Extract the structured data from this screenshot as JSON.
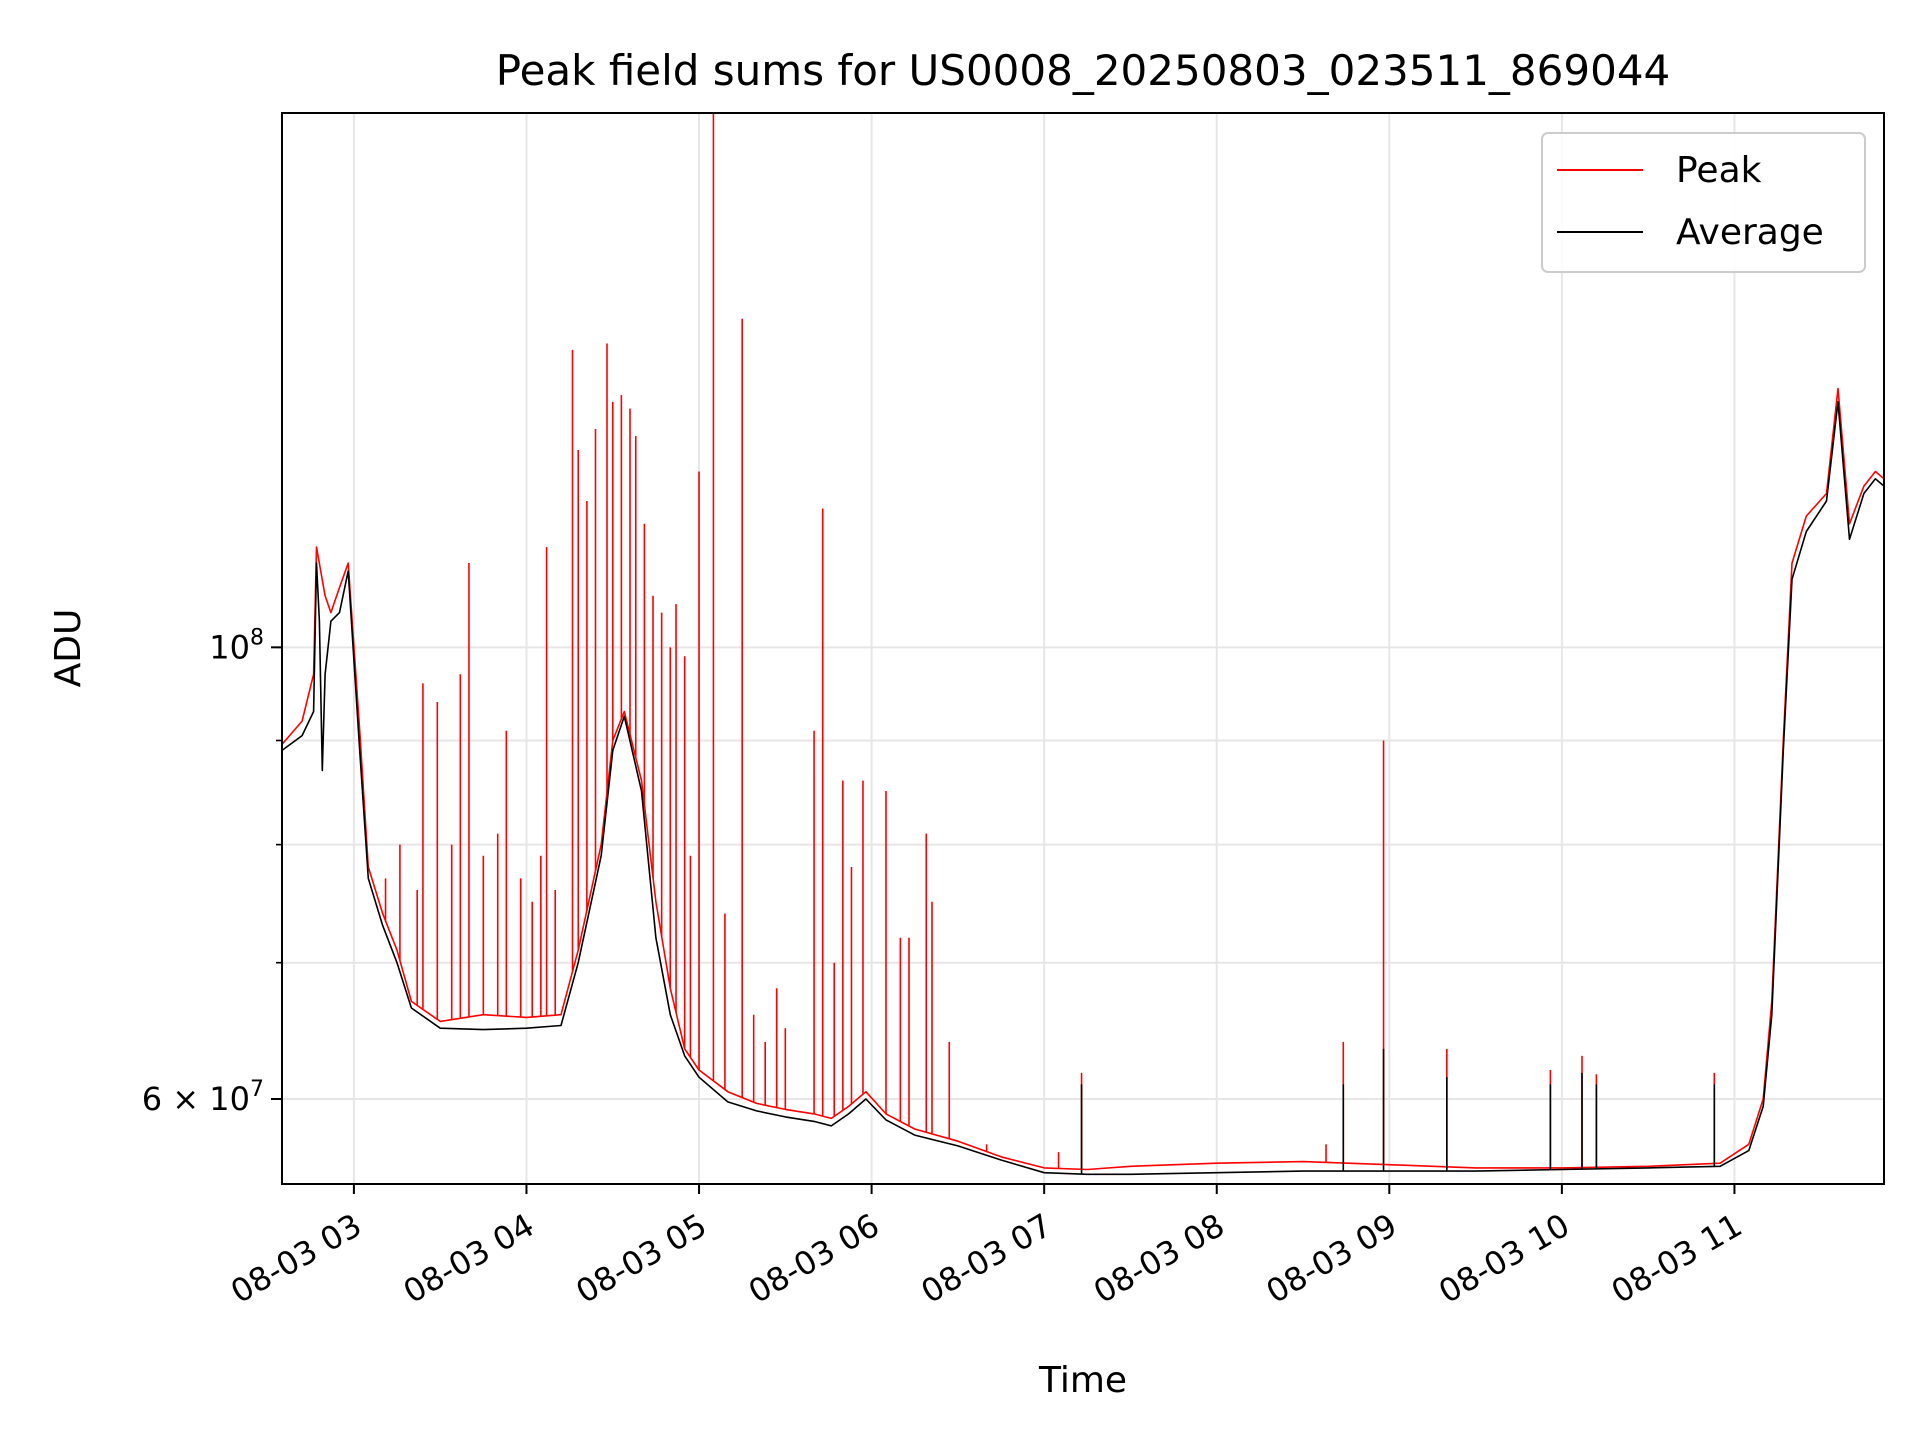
{
  "chart_data": {
    "type": "line",
    "title": "Peak field sums for US0008_20250803_023511_869044",
    "xlabel": "Time",
    "ylabel": "ADU",
    "y_scale": "log",
    "ylim": [
      54500000,
      183000000
    ],
    "xlim": [
      "2025-08-03 02:35",
      "2025-08-03 11:52"
    ],
    "grid": true,
    "legend_position": "top-right",
    "x_ticks": [
      {
        "time": "2025-08-03 03:00",
        "label": "08-03 03"
      },
      {
        "time": "2025-08-03 04:00",
        "label": "08-03 04"
      },
      {
        "time": "2025-08-03 05:00",
        "label": "08-03 05"
      },
      {
        "time": "2025-08-03 06:00",
        "label": "08-03 06"
      },
      {
        "time": "2025-08-03 07:00",
        "label": "08-03 07"
      },
      {
        "time": "2025-08-03 08:00",
        "label": "08-03 08"
      },
      {
        "time": "2025-08-03 09:00",
        "label": "08-03 09"
      },
      {
        "time": "2025-08-03 10:00",
        "label": "08-03 10"
      },
      {
        "time": "2025-08-03 11:00",
        "label": "08-03 11"
      }
    ],
    "y_major_ticks": [
      {
        "value": 60000000,
        "mantissa": "6",
        "exponent": "7"
      },
      {
        "value": 100000000,
        "mantissa": "",
        "exponent": "8"
      }
    ],
    "y_minor_ticks": [
      60000000,
      70000000,
      80000000,
      90000000,
      100000000
    ],
    "series": [
      {
        "name": "Peak",
        "color": "#ff0000",
        "points": [
          [
            "2025-08-03 02:35",
            89600000
          ],
          [
            "2025-08-03 02:42",
            92000000
          ],
          [
            "2025-08-03 02:46",
            97000000
          ],
          [
            "2025-08-03 02:47",
            112000000
          ],
          [
            "2025-08-03 02:50",
            106000000
          ],
          [
            "2025-08-03 02:52",
            104000000
          ],
          [
            "2025-08-03 02:55",
            107000000
          ],
          [
            "2025-08-03 02:58",
            110000000
          ],
          [
            "2025-08-03 03:02",
            91000000
          ],
          [
            "2025-08-03 03:05",
            78000000
          ],
          [
            "2025-08-03 03:10",
            74000000
          ],
          [
            "2025-08-03 03:15",
            71000000
          ],
          [
            "2025-08-03 03:20",
            67000000
          ],
          [
            "2025-08-03 03:30",
            65500000
          ],
          [
            "2025-08-03 03:45",
            66000000
          ],
          [
            "2025-08-03 04:00",
            65800000
          ],
          [
            "2025-08-03 04:12",
            66000000
          ],
          [
            "2025-08-03 04:18",
            71000000
          ],
          [
            "2025-08-03 04:26",
            80000000
          ],
          [
            "2025-08-03 04:30",
            90000000
          ],
          [
            "2025-08-03 04:34",
            93000000
          ],
          [
            "2025-08-03 04:40",
            86000000
          ],
          [
            "2025-08-03 04:45",
            75000000
          ],
          [
            "2025-08-03 04:50",
            68000000
          ],
          [
            "2025-08-03 04:55",
            63500000
          ],
          [
            "2025-08-03 05:00",
            62000000
          ],
          [
            "2025-08-03 05:10",
            60500000
          ],
          [
            "2025-08-03 05:20",
            59700000
          ],
          [
            "2025-08-03 05:30",
            59300000
          ],
          [
            "2025-08-03 05:40",
            59000000
          ],
          [
            "2025-08-03 05:46",
            58700000
          ],
          [
            "2025-08-03 05:52",
            59500000
          ],
          [
            "2025-08-03 05:58",
            60500000
          ],
          [
            "2025-08-03 06:05",
            59000000
          ],
          [
            "2025-08-03 06:15",
            58000000
          ],
          [
            "2025-08-03 06:30",
            57200000
          ],
          [
            "2025-08-03 06:45",
            56200000
          ],
          [
            "2025-08-03 07:00",
            55500000
          ],
          [
            "2025-08-03 07:15",
            55400000
          ],
          [
            "2025-08-03 07:30",
            55600000
          ],
          [
            "2025-08-03 08:00",
            55800000
          ],
          [
            "2025-08-03 08:30",
            55900000
          ],
          [
            "2025-08-03 09:00",
            55700000
          ],
          [
            "2025-08-03 09:30",
            55500000
          ],
          [
            "2025-08-03 10:00",
            55500000
          ],
          [
            "2025-08-03 10:30",
            55600000
          ],
          [
            "2025-08-03 10:55",
            55800000
          ],
          [
            "2025-08-03 11:05",
            57000000
          ],
          [
            "2025-08-03 11:10",
            60000000
          ],
          [
            "2025-08-03 11:13",
            67000000
          ],
          [
            "2025-08-03 11:17",
            90000000
          ],
          [
            "2025-08-03 11:20",
            110000000
          ],
          [
            "2025-08-03 11:25",
            116000000
          ],
          [
            "2025-08-03 11:32",
            119000000
          ],
          [
            "2025-08-03 11:36",
            134000000
          ],
          [
            "2025-08-03 11:40",
            115000000
          ],
          [
            "2025-08-03 11:45",
            120000000
          ],
          [
            "2025-08-03 11:49",
            122000000
          ],
          [
            "2025-08-03 11:52",
            121000000
          ]
        ],
        "spikes": [
          [
            "2025-08-03 03:11",
            77000000
          ],
          [
            "2025-08-03 03:16",
            80000000
          ],
          [
            "2025-08-03 03:22",
            76000000
          ],
          [
            "2025-08-03 03:24",
            96000000
          ],
          [
            "2025-08-03 03:29",
            94000000
          ],
          [
            "2025-08-03 03:34",
            80000000
          ],
          [
            "2025-08-03 03:37",
            97000000
          ],
          [
            "2025-08-03 03:40",
            110000000
          ],
          [
            "2025-08-03 03:45",
            79000000
          ],
          [
            "2025-08-03 03:50",
            81000000
          ],
          [
            "2025-08-03 03:53",
            91000000
          ],
          [
            "2025-08-03 03:58",
            77000000
          ],
          [
            "2025-08-03 04:02",
            75000000
          ],
          [
            "2025-08-03 04:05",
            79000000
          ],
          [
            "2025-08-03 04:07",
            112000000
          ],
          [
            "2025-08-03 04:10",
            76000000
          ],
          [
            "2025-08-03 04:16",
            140000000
          ],
          [
            "2025-08-03 04:18",
            125000000
          ],
          [
            "2025-08-03 04:21",
            118000000
          ],
          [
            "2025-08-03 04:24",
            128000000
          ],
          [
            "2025-08-03 04:28",
            141000000
          ],
          [
            "2025-08-03 04:30",
            132000000
          ],
          [
            "2025-08-03 04:33",
            133000000
          ],
          [
            "2025-08-03 04:36",
            131000000
          ],
          [
            "2025-08-03 04:38",
            127000000
          ],
          [
            "2025-08-03 04:41",
            115000000
          ],
          [
            "2025-08-03 04:44",
            106000000
          ],
          [
            "2025-08-03 04:47",
            104000000
          ],
          [
            "2025-08-03 04:50",
            100000000
          ],
          [
            "2025-08-03 04:52",
            105000000
          ],
          [
            "2025-08-03 04:55",
            99000000
          ],
          [
            "2025-08-03 04:57",
            79000000
          ],
          [
            "2025-08-03 05:00",
            122000000
          ],
          [
            "2025-08-03 05:05",
            183000000
          ],
          [
            "2025-08-03 05:09",
            74000000
          ],
          [
            "2025-08-03 05:15",
            145000000
          ],
          [
            "2025-08-03 05:19",
            66000000
          ],
          [
            "2025-08-03 05:23",
            64000000
          ],
          [
            "2025-08-03 05:27",
            68000000
          ],
          [
            "2025-08-03 05:30",
            65000000
          ],
          [
            "2025-08-03 05:40",
            91000000
          ],
          [
            "2025-08-03 05:43",
            117000000
          ],
          [
            "2025-08-03 05:47",
            70000000
          ],
          [
            "2025-08-03 05:50",
            86000000
          ],
          [
            "2025-08-03 05:53",
            78000000
          ],
          [
            "2025-08-03 05:57",
            86000000
          ],
          [
            "2025-08-03 06:05",
            85000000
          ],
          [
            "2025-08-03 06:10",
            72000000
          ],
          [
            "2025-08-03 06:13",
            72000000
          ],
          [
            "2025-08-03 06:19",
            81000000
          ],
          [
            "2025-08-03 06:21",
            75000000
          ],
          [
            "2025-08-03 06:27",
            64000000
          ],
          [
            "2025-08-03 06:40",
            57000000
          ],
          [
            "2025-08-03 07:05",
            56500000
          ],
          [
            "2025-08-03 07:13",
            61800000
          ],
          [
            "2025-08-03 08:38",
            57000000
          ],
          [
            "2025-08-03 08:44",
            64000000
          ],
          [
            "2025-08-03 08:58",
            90000000
          ],
          [
            "2025-08-03 09:20",
            63500000
          ],
          [
            "2025-08-03 09:56",
            62000000
          ],
          [
            "2025-08-03 10:07",
            63000000
          ],
          [
            "2025-08-03 10:12",
            61700000
          ],
          [
            "2025-08-03 10:53",
            61800000
          ]
        ]
      },
      {
        "name": "Average",
        "color": "#000000",
        "points": [
          [
            "2025-08-03 02:35",
            89000000
          ],
          [
            "2025-08-03 02:42",
            90500000
          ],
          [
            "2025-08-03 02:46",
            93000000
          ],
          [
            "2025-08-03 02:47",
            110000000
          ],
          [
            "2025-08-03 02:48",
            103000000
          ],
          [
            "2025-08-03 02:49",
            87000000
          ],
          [
            "2025-08-03 02:50",
            97000000
          ],
          [
            "2025-08-03 02:52",
            103000000
          ],
          [
            "2025-08-03 02:55",
            104000000
          ],
          [
            "2025-08-03 02:58",
            109000000
          ],
          [
            "2025-08-03 03:02",
            89000000
          ],
          [
            "2025-08-03 03:05",
            77000000
          ],
          [
            "2025-08-03 03:10",
            73000000
          ],
          [
            "2025-08-03 03:15",
            70000000
          ],
          [
            "2025-08-03 03:20",
            66500000
          ],
          [
            "2025-08-03 03:30",
            65000000
          ],
          [
            "2025-08-03 03:45",
            64900000
          ],
          [
            "2025-08-03 04:00",
            65000000
          ],
          [
            "2025-08-03 04:12",
            65200000
          ],
          [
            "2025-08-03 04:18",
            70000000
          ],
          [
            "2025-08-03 04:26",
            79000000
          ],
          [
            "2025-08-03 04:30",
            89000000
          ],
          [
            "2025-08-03 04:34",
            92500000
          ],
          [
            "2025-08-03 04:40",
            85000000
          ],
          [
            "2025-08-03 04:45",
            72000000
          ],
          [
            "2025-08-03 04:50",
            66000000
          ],
          [
            "2025-08-03 04:55",
            63000000
          ],
          [
            "2025-08-03 05:00",
            61500000
          ],
          [
            "2025-08-03 05:10",
            59800000
          ],
          [
            "2025-08-03 05:20",
            59200000
          ],
          [
            "2025-08-03 05:30",
            58800000
          ],
          [
            "2025-08-03 05:40",
            58500000
          ],
          [
            "2025-08-03 05:46",
            58200000
          ],
          [
            "2025-08-03 05:52",
            59000000
          ],
          [
            "2025-08-03 05:58",
            60000000
          ],
          [
            "2025-08-03 06:05",
            58600000
          ],
          [
            "2025-08-03 06:15",
            57600000
          ],
          [
            "2025-08-03 06:30",
            56900000
          ],
          [
            "2025-08-03 06:45",
            56000000
          ],
          [
            "2025-08-03 07:00",
            55200000
          ],
          [
            "2025-08-03 07:15",
            55100000
          ],
          [
            "2025-08-03 07:30",
            55100000
          ],
          [
            "2025-08-03 08:00",
            55200000
          ],
          [
            "2025-08-03 08:30",
            55300000
          ],
          [
            "2025-08-03 09:00",
            55300000
          ],
          [
            "2025-08-03 09:30",
            55300000
          ],
          [
            "2025-08-03 10:00",
            55400000
          ],
          [
            "2025-08-03 10:30",
            55500000
          ],
          [
            "2025-08-03 10:55",
            55600000
          ],
          [
            "2025-08-03 11:05",
            56600000
          ],
          [
            "2025-08-03 11:10",
            59500000
          ],
          [
            "2025-08-03 11:13",
            66000000
          ],
          [
            "2025-08-03 11:17",
            89000000
          ],
          [
            "2025-08-03 11:20",
            108000000
          ],
          [
            "2025-08-03 11:25",
            114000000
          ],
          [
            "2025-08-03 11:32",
            118000000
          ],
          [
            "2025-08-03 11:36",
            132000000
          ],
          [
            "2025-08-03 11:40",
            113000000
          ],
          [
            "2025-08-03 11:45",
            119000000
          ],
          [
            "2025-08-03 11:49",
            121000000
          ],
          [
            "2025-08-03 11:52",
            120000000
          ]
        ],
        "spikes": [
          [
            "2025-08-03 07:13",
            61000000
          ],
          [
            "2025-08-03 08:44",
            61000000
          ],
          [
            "2025-08-03 08:58",
            63500000
          ],
          [
            "2025-08-03 09:20",
            61500000
          ],
          [
            "2025-08-03 09:56",
            61000000
          ],
          [
            "2025-08-03 10:07",
            61800000
          ],
          [
            "2025-08-03 10:12",
            61000000
          ],
          [
            "2025-08-03 10:53",
            61000000
          ]
        ]
      }
    ]
  }
}
